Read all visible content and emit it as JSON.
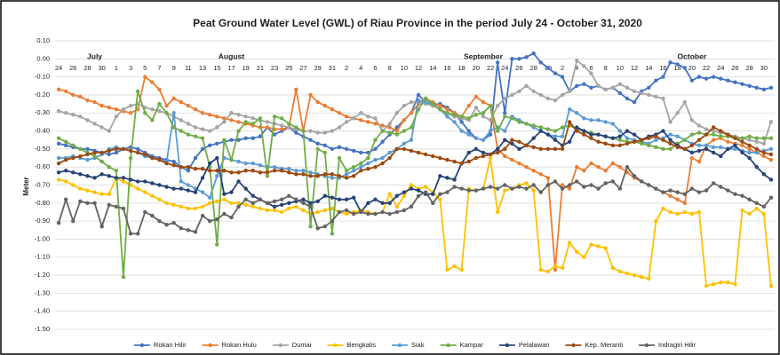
{
  "chart_data": {
    "type": "line",
    "title": "Peat Ground Water Level (GWL) of Riau Province in the period July 24 - October 31, 2020",
    "y_label": "Meter",
    "month_labels": [
      "July",
      "August",
      "September",
      "October"
    ],
    "categories": [
      "24",
      null,
      "26",
      null,
      "28",
      null,
      "30",
      null,
      "1",
      null,
      "3",
      null,
      "5",
      null,
      "7",
      null,
      "9",
      null,
      "11",
      null,
      "13",
      null,
      "15",
      null,
      "17",
      null,
      "19",
      null,
      "21",
      null,
      "23",
      null,
      "25",
      null,
      "27",
      null,
      "29",
      null,
      "31",
      null,
      "2",
      null,
      "4",
      null,
      "6",
      null,
      "8",
      null,
      "10",
      null,
      "12",
      null,
      "14",
      null,
      "16",
      null,
      "18",
      null,
      "20",
      null,
      "22",
      null,
      "24",
      null,
      "26",
      null,
      "28",
      null,
      "30",
      null,
      "2",
      null,
      "4",
      null,
      "6",
      null,
      "8",
      null,
      "10",
      null,
      "12",
      null,
      "14",
      null,
      "16",
      null,
      "18",
      null,
      "20",
      null,
      "22",
      null,
      "24",
      null,
      "26",
      null,
      "28",
      null,
      "30",
      null
    ],
    "ylim": [
      -1.5,
      0.1
    ],
    "yticks": [
      {
        "value": 0.1,
        "label": "0.10"
      },
      {
        "value": 0,
        "label": "0.00"
      },
      {
        "value": -0.1,
        "label": "-0.10"
      },
      {
        "value": -0.2,
        "label": "-0.20"
      },
      {
        "value": -0.3,
        "label": "-0.30"
      },
      {
        "value": -0.4,
        "label": "-0.40"
      },
      {
        "value": -0.5,
        "label": "-0.50"
      },
      {
        "value": -0.6,
        "label": "-0.60"
      },
      {
        "value": -0.7,
        "label": "-0.70"
      },
      {
        "value": -0.8,
        "label": "-0.80"
      },
      {
        "value": -0.9,
        "label": "-0.90"
      },
      {
        "value": -1.0,
        "label": "-1.00"
      },
      {
        "value": -1.1,
        "label": "-1.10"
      },
      {
        "value": -1.2,
        "label": "-1.20"
      },
      {
        "value": -1.3,
        "label": "-1.30"
      },
      {
        "value": -1.4,
        "label": "-1.40"
      },
      {
        "value": -1.5,
        "label": "-1.50"
      }
    ],
    "grid": true,
    "legend": "bottom",
    "series": [
      {
        "name": "Rokan Hilir",
        "color": "#4472c4",
        "values": [
          -0.47,
          -0.48,
          -0.49,
          -0.5,
          -0.5,
          -0.51,
          -0.52,
          -0.53,
          -0.52,
          -0.5,
          -0.49,
          -0.5,
          -0.52,
          -0.54,
          -0.55,
          -0.56,
          -0.57,
          -0.6,
          -0.62,
          -0.55,
          -0.5,
          -0.48,
          -0.47,
          -0.46,
          -0.45,
          -0.45,
          -0.44,
          -0.44,
          -0.43,
          -0.38,
          -0.42,
          -0.4,
          -0.38,
          -0.41,
          -0.43,
          -0.45,
          -0.47,
          -0.48,
          -0.5,
          -0.49,
          -0.5,
          -0.51,
          -0.52,
          -0.52,
          -0.5,
          -0.46,
          -0.42,
          -0.38,
          -0.34,
          -0.3,
          -0.2,
          -0.24,
          -0.26,
          -0.25,
          -0.27,
          -0.3,
          -0.35,
          -0.4,
          -0.44,
          -0.45,
          -0.42,
          -0.02,
          -0.3,
          0.0,
          0.0,
          0.01,
          0.03,
          -0.02,
          -0.05,
          -0.08,
          -0.1,
          -0.18,
          -0.15,
          -0.14,
          -0.16,
          -0.15,
          -0.17,
          -0.16,
          -0.19,
          -0.22,
          -0.24,
          -0.18,
          -0.16,
          -0.12,
          -0.1,
          -0.02,
          -0.03,
          -0.05,
          -0.12,
          -0.1,
          -0.11,
          -0.1,
          -0.11,
          -0.12,
          -0.13,
          -0.14,
          -0.15,
          -0.16,
          -0.17,
          -0.16
        ]
      },
      {
        "name": "Rokan Hulu",
        "color": "#ed7d31",
        "values": [
          -0.17,
          -0.18,
          -0.2,
          -0.21,
          -0.23,
          -0.24,
          -0.26,
          -0.27,
          -0.28,
          -0.29,
          -0.3,
          -0.28,
          -0.1,
          -0.13,
          -0.17,
          -0.26,
          -0.22,
          -0.24,
          -0.26,
          -0.28,
          -0.3,
          -0.31,
          -0.32,
          -0.33,
          -0.34,
          -0.35,
          -0.36,
          -0.37,
          -0.38,
          -0.38,
          -0.39,
          -0.39,
          -0.38,
          -0.17,
          -0.4,
          -0.2,
          -0.24,
          -0.26,
          -0.28,
          -0.3,
          -0.32,
          -0.33,
          -0.34,
          -0.35,
          -0.36,
          -0.37,
          -0.38,
          -0.4,
          -0.34,
          -0.3,
          -0.25,
          -0.22,
          -0.24,
          -0.26,
          -0.28,
          -0.3,
          -0.32,
          -0.26,
          -0.21,
          -0.24,
          -0.26,
          -0.5,
          -0.54,
          -0.56,
          -0.58,
          -0.6,
          -0.62,
          -0.64,
          -0.66,
          -1.17,
          -0.7,
          -0.72,
          -0.6,
          -0.62,
          -0.58,
          -0.6,
          -0.62,
          -0.58,
          -0.6,
          -0.63,
          -0.66,
          -0.68,
          -0.7,
          -0.72,
          -0.74,
          -0.76,
          -0.78,
          -0.8,
          -0.55,
          -0.57,
          -0.48,
          -0.45,
          -0.44,
          -0.46,
          -0.47,
          -0.48,
          -0.5,
          -0.52,
          -0.54,
          -0.56
        ]
      },
      {
        "name": "Dumai",
        "color": "#a5a5a5",
        "values": [
          -0.29,
          -0.3,
          -0.31,
          -0.32,
          -0.34,
          -0.36,
          -0.38,
          -0.4,
          -0.32,
          -0.28,
          -0.26,
          -0.25,
          -0.27,
          -0.28,
          -0.29,
          -0.3,
          -0.32,
          -0.34,
          -0.36,
          -0.38,
          -0.39,
          -0.4,
          -0.38,
          -0.35,
          -0.3,
          -0.31,
          -0.32,
          -0.33,
          -0.34,
          -0.35,
          -0.36,
          -0.37,
          -0.38,
          -0.39,
          -0.4,
          -0.4,
          -0.41,
          -0.41,
          -0.4,
          -0.38,
          -0.35,
          -0.33,
          -0.3,
          -0.32,
          -0.33,
          -0.4,
          -0.36,
          -0.3,
          -0.26,
          -0.24,
          -0.24,
          -0.25,
          -0.26,
          -0.28,
          -0.3,
          -0.32,
          -0.33,
          -0.34,
          -0.27,
          -0.32,
          -0.34,
          -0.26,
          -0.22,
          -0.2,
          -0.18,
          -0.15,
          -0.18,
          -0.2,
          -0.22,
          -0.23,
          -0.2,
          -0.18,
          -0.01,
          -0.04,
          -0.08,
          -0.15,
          -0.17,
          -0.16,
          -0.14,
          -0.16,
          -0.18,
          -0.19,
          -0.2,
          -0.21,
          -0.22,
          -0.35,
          -0.3,
          -0.24,
          -0.34,
          -0.37,
          -0.39,
          -0.4,
          -0.41,
          -0.42,
          -0.43,
          -0.44,
          -0.45,
          -0.46,
          -0.47,
          -0.35
        ]
      },
      {
        "name": "Bengkalis",
        "color": "#ffc000",
        "values": [
          -0.67,
          -0.68,
          -0.7,
          -0.72,
          -0.73,
          -0.74,
          -0.75,
          -0.75,
          -0.66,
          -0.68,
          -0.7,
          -0.72,
          -0.74,
          -0.76,
          -0.78,
          -0.8,
          -0.81,
          -0.82,
          -0.83,
          -0.83,
          -0.82,
          -0.8,
          -0.79,
          -0.78,
          -0.8,
          -0.8,
          -0.81,
          -0.82,
          -0.83,
          -0.84,
          -0.84,
          -0.85,
          -0.83,
          -0.82,
          -0.84,
          -0.86,
          -0.85,
          -0.84,
          -0.83,
          -0.85,
          -0.86,
          -0.85,
          -0.84,
          -0.85,
          -0.86,
          -0.85,
          -0.75,
          -0.82,
          -0.76,
          -0.7,
          -0.72,
          -0.71,
          -0.74,
          -0.78,
          -1.17,
          -1.15,
          -1.17,
          -0.72,
          -0.73,
          -0.72,
          -0.55,
          -0.85,
          -0.73,
          -0.72,
          -0.7,
          -0.69,
          -0.73,
          -1.17,
          -1.18,
          -1.15,
          -1.16,
          -1.02,
          -1.07,
          -1.1,
          -1.03,
          -1.04,
          -1.05,
          -1.16,
          -1.18,
          -1.19,
          -1.2,
          -1.21,
          -1.22,
          -0.9,
          -0.83,
          -0.85,
          -0.86,
          -0.85,
          -0.86,
          -0.85,
          -1.26,
          -1.25,
          -1.24,
          -1.24,
          -1.25,
          -0.84,
          -0.86,
          -0.83,
          -0.86,
          -1.26
        ]
      },
      {
        "name": "Siak",
        "color": "#5b9bd5",
        "values": [
          -0.55,
          -0.55,
          -0.54,
          -0.55,
          -0.56,
          -0.55,
          -0.53,
          -0.5,
          -0.49,
          -0.5,
          -0.51,
          -0.52,
          -0.54,
          -0.55,
          -0.56,
          -0.57,
          -0.3,
          -0.68,
          -0.7,
          -0.72,
          -0.74,
          -0.77,
          -0.65,
          -0.55,
          -0.56,
          -0.57,
          -0.58,
          -0.58,
          -0.59,
          -0.6,
          -0.6,
          -0.61,
          -0.61,
          -0.62,
          -0.62,
          -0.63,
          -0.64,
          -0.65,
          -0.66,
          -0.66,
          -0.64,
          -0.62,
          -0.6,
          -0.58,
          -0.56,
          -0.55,
          -0.52,
          -0.5,
          -0.47,
          -0.45,
          -0.23,
          -0.24,
          -0.25,
          -0.28,
          -0.32,
          -0.35,
          -0.4,
          -0.42,
          -0.44,
          -0.45,
          -0.4,
          -0.38,
          -0.4,
          -0.32,
          -0.34,
          -0.36,
          -0.38,
          -0.4,
          -0.42,
          -0.43,
          -0.43,
          -0.28,
          -0.3,
          -0.33,
          -0.34,
          -0.34,
          -0.35,
          -0.36,
          -0.4,
          -0.44,
          -0.45,
          -0.46,
          -0.47,
          -0.45,
          -0.44,
          -0.42,
          -0.43,
          -0.45,
          -0.47,
          -0.48,
          -0.48,
          -0.49,
          -0.49,
          -0.5,
          -0.5,
          -0.51,
          -0.52,
          -0.52,
          -0.51,
          -0.5
        ]
      },
      {
        "name": "Kampar",
        "color": "#70ad47",
        "values": [
          -0.44,
          -0.46,
          -0.48,
          -0.5,
          -0.52,
          -0.54,
          -0.57,
          -0.6,
          -0.62,
          -1.21,
          -0.55,
          -0.18,
          -0.3,
          -0.34,
          -0.25,
          -0.3,
          -0.38,
          -0.4,
          -0.42,
          -0.43,
          -0.44,
          -0.6,
          -1.03,
          -0.45,
          -0.56,
          -0.4,
          -0.35,
          -0.36,
          -0.33,
          -0.65,
          -0.32,
          -0.33,
          -0.36,
          -0.38,
          -0.4,
          -0.93,
          -0.5,
          -0.52,
          -0.97,
          -0.55,
          -0.62,
          -0.6,
          -0.58,
          -0.55,
          -0.45,
          -0.4,
          -0.41,
          -0.42,
          -0.4,
          -0.38,
          -0.28,
          -0.22,
          -0.25,
          -0.28,
          -0.3,
          -0.31,
          -0.32,
          -0.33,
          -0.31,
          -0.3,
          -0.26,
          -0.4,
          -0.32,
          -0.33,
          -0.35,
          -0.36,
          -0.37,
          -0.38,
          -0.39,
          -0.4,
          -0.38,
          -0.37,
          -0.39,
          -0.4,
          -0.41,
          -0.42,
          -0.43,
          -0.44,
          -0.45,
          -0.46,
          -0.46,
          -0.47,
          -0.48,
          -0.49,
          -0.5,
          -0.5,
          -0.47,
          -0.45,
          -0.42,
          -0.41,
          -0.42,
          -0.42,
          -0.43,
          -0.43,
          -0.44,
          -0.44,
          -0.43,
          -0.44,
          -0.44,
          -0.44
        ]
      },
      {
        "name": "Pelalawan",
        "color": "#264478",
        "values": [
          -0.63,
          -0.62,
          -0.63,
          -0.64,
          -0.65,
          -0.66,
          -0.64,
          -0.65,
          -0.66,
          -0.66,
          -0.67,
          -0.68,
          -0.68,
          -0.69,
          -0.7,
          -0.71,
          -0.72,
          -0.72,
          -0.73,
          -0.74,
          -0.66,
          -0.58,
          -0.55,
          -0.75,
          -0.74,
          -0.68,
          -0.72,
          -0.76,
          -0.78,
          -0.8,
          -0.82,
          -0.81,
          -0.8,
          -0.79,
          -0.78,
          -0.8,
          -0.79,
          -0.76,
          -0.77,
          -0.78,
          -0.78,
          -0.77,
          -0.85,
          -0.8,
          -0.78,
          -0.8,
          -0.8,
          -0.76,
          -0.74,
          -0.72,
          -0.73,
          -0.75,
          -0.75,
          -0.65,
          -0.66,
          -0.67,
          -0.58,
          -0.52,
          -0.5,
          -0.52,
          -0.53,
          -0.5,
          -0.45,
          -0.47,
          -0.5,
          -0.48,
          -0.44,
          -0.4,
          -0.42,
          -0.45,
          -0.48,
          -0.46,
          -0.38,
          -0.4,
          -0.42,
          -0.42,
          -0.43,
          -0.44,
          -0.43,
          -0.4,
          -0.42,
          -0.45,
          -0.43,
          -0.42,
          -0.4,
          -0.45,
          -0.48,
          -0.5,
          -0.52,
          -0.51,
          -0.5,
          -0.52,
          -0.54,
          -0.5,
          -0.48,
          -0.52,
          -0.55,
          -0.6,
          -0.64,
          -0.67
        ]
      },
      {
        "name": "Kep. Meranti",
        "color": "#9e480e",
        "values": [
          -0.58,
          -0.56,
          -0.55,
          -0.54,
          -0.53,
          -0.52,
          -0.52,
          -0.51,
          -0.5,
          -0.5,
          -0.51,
          -0.52,
          -0.53,
          -0.55,
          -0.56,
          -0.58,
          -0.59,
          -0.6,
          -0.6,
          -0.61,
          -0.61,
          -0.62,
          -0.62,
          -0.62,
          -0.63,
          -0.63,
          -0.62,
          -0.62,
          -0.63,
          -0.63,
          -0.62,
          -0.62,
          -0.63,
          -0.64,
          -0.64,
          -0.65,
          -0.65,
          -0.64,
          -0.64,
          -0.65,
          -0.66,
          -0.65,
          -0.62,
          -0.61,
          -0.6,
          -0.58,
          -0.55,
          -0.5,
          -0.5,
          -0.51,
          -0.52,
          -0.53,
          -0.54,
          -0.55,
          -0.56,
          -0.57,
          -0.58,
          -0.57,
          -0.55,
          -0.54,
          -0.53,
          -0.52,
          -0.5,
          -0.45,
          -0.46,
          -0.48,
          -0.49,
          -0.5,
          -0.5,
          -0.5,
          -0.5,
          -0.35,
          -0.4,
          -0.42,
          -0.44,
          -0.46,
          -0.47,
          -0.48,
          -0.48,
          -0.47,
          -0.46,
          -0.45,
          -0.44,
          -0.43,
          -0.45,
          -0.47,
          -0.49,
          -0.5,
          -0.48,
          -0.45,
          -0.42,
          -0.38,
          -0.4,
          -0.42,
          -0.44,
          -0.46,
          -0.48,
          -0.5,
          -0.52,
          -0.53
        ]
      },
      {
        "name": "Indragiri Hilir",
        "color": "#636363",
        "values": [
          -0.91,
          -0.78,
          -0.9,
          -0.79,
          -0.8,
          -0.8,
          -0.93,
          -0.81,
          -0.82,
          -0.83,
          -0.97,
          -0.97,
          -0.85,
          -0.87,
          -0.9,
          -0.92,
          -0.91,
          -0.94,
          -0.95,
          -0.96,
          -0.87,
          -0.9,
          -0.89,
          -0.86,
          -0.88,
          -0.82,
          -0.78,
          -0.8,
          -0.78,
          -0.8,
          -0.79,
          -0.78,
          -0.76,
          -0.78,
          -0.8,
          -0.82,
          -0.94,
          -0.93,
          -0.9,
          -0.85,
          -0.84,
          -0.86,
          -0.85,
          -0.86,
          -0.86,
          -0.85,
          -0.86,
          -0.85,
          -0.84,
          -0.82,
          -0.76,
          -0.74,
          -0.8,
          -0.75,
          -0.74,
          -0.71,
          -0.72,
          -0.73,
          -0.73,
          -0.72,
          -0.71,
          -0.72,
          -0.7,
          -0.72,
          -0.71,
          -0.72,
          -0.7,
          -0.74,
          -0.7,
          -0.68,
          -0.72,
          -0.7,
          -0.68,
          -0.71,
          -0.7,
          -0.72,
          -0.69,
          -0.68,
          -0.72,
          -0.6,
          -0.65,
          -0.68,
          -0.7,
          -0.72,
          -0.74,
          -0.73,
          -0.74,
          -0.75,
          -0.72,
          -0.74,
          -0.73,
          -0.69,
          -0.71,
          -0.73,
          -0.75,
          -0.76,
          -0.78,
          -0.8,
          -0.82,
          -0.77
        ]
      }
    ]
  }
}
